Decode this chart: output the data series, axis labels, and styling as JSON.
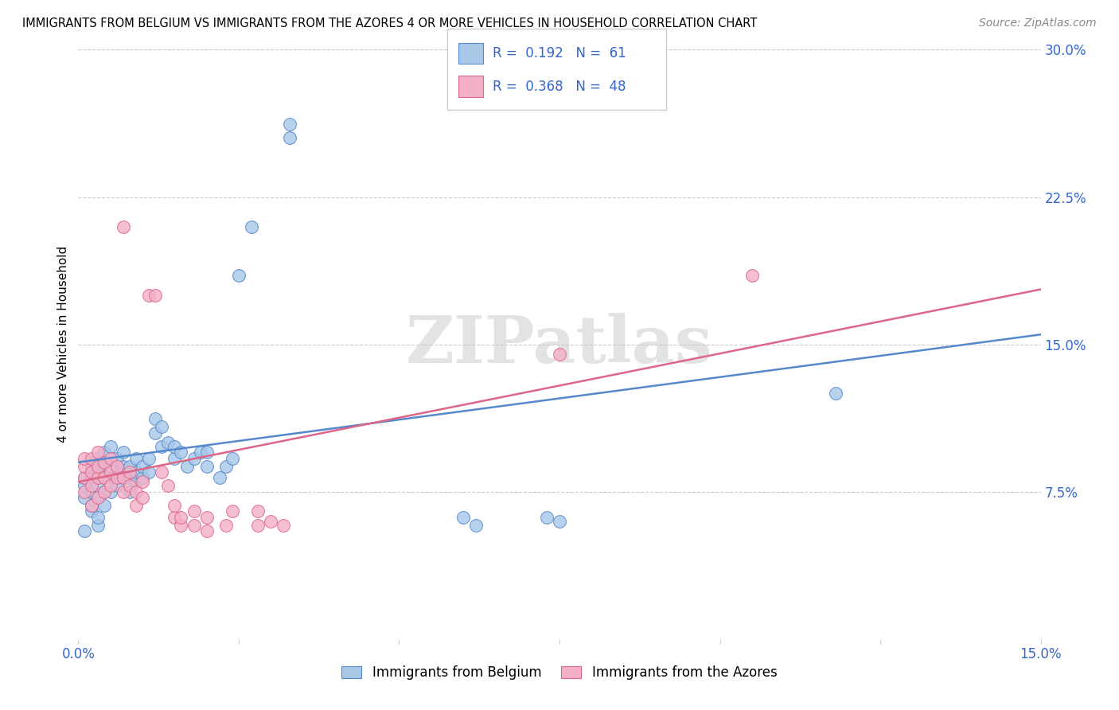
{
  "title": "IMMIGRANTS FROM BELGIUM VS IMMIGRANTS FROM THE AZORES 4 OR MORE VEHICLES IN HOUSEHOLD CORRELATION CHART",
  "source": "Source: ZipAtlas.com",
  "ylabel": "4 or more Vehicles in Household",
  "xlim": [
    0.0,
    0.15
  ],
  "ylim": [
    0.0,
    0.3
  ],
  "ytick_labels": [
    "7.5%",
    "15.0%",
    "22.5%",
    "30.0%"
  ],
  "ytick_vals": [
    0.075,
    0.15,
    0.225,
    0.3
  ],
  "grid_color": "#cccccc",
  "watermark_text": "ZIPatlas",
  "blue_color": "#a8c8e8",
  "pink_color": "#f4b0c8",
  "line_blue": "#5588cc",
  "line_pink": "#dd6688",
  "legend_color": "#3366cc",
  "blue_scatter": [
    [
      0.001,
      0.055
    ],
    [
      0.001,
      0.072
    ],
    [
      0.001,
      0.078
    ],
    [
      0.001,
      0.082
    ],
    [
      0.002,
      0.065
    ],
    [
      0.002,
      0.068
    ],
    [
      0.002,
      0.075
    ],
    [
      0.002,
      0.082
    ],
    [
      0.002,
      0.088
    ],
    [
      0.003,
      0.058
    ],
    [
      0.003,
      0.062
    ],
    [
      0.003,
      0.072
    ],
    [
      0.003,
      0.078
    ],
    [
      0.003,
      0.085
    ],
    [
      0.003,
      0.092
    ],
    [
      0.004,
      0.068
    ],
    [
      0.004,
      0.075
    ],
    [
      0.004,
      0.082
    ],
    [
      0.004,
      0.088
    ],
    [
      0.004,
      0.095
    ],
    [
      0.005,
      0.075
    ],
    [
      0.005,
      0.082
    ],
    [
      0.005,
      0.088
    ],
    [
      0.005,
      0.098
    ],
    [
      0.006,
      0.078
    ],
    [
      0.006,
      0.085
    ],
    [
      0.006,
      0.092
    ],
    [
      0.007,
      0.082
    ],
    [
      0.007,
      0.088
    ],
    [
      0.007,
      0.095
    ],
    [
      0.008,
      0.075
    ],
    [
      0.008,
      0.082
    ],
    [
      0.008,
      0.088
    ],
    [
      0.009,
      0.08
    ],
    [
      0.009,
      0.085
    ],
    [
      0.009,
      0.092
    ],
    [
      0.01,
      0.082
    ],
    [
      0.01,
      0.088
    ],
    [
      0.011,
      0.085
    ],
    [
      0.011,
      0.092
    ],
    [
      0.012,
      0.105
    ],
    [
      0.012,
      0.112
    ],
    [
      0.013,
      0.098
    ],
    [
      0.013,
      0.108
    ],
    [
      0.014,
      0.1
    ],
    [
      0.015,
      0.092
    ],
    [
      0.015,
      0.098
    ],
    [
      0.016,
      0.095
    ],
    [
      0.017,
      0.088
    ],
    [
      0.018,
      0.092
    ],
    [
      0.019,
      0.095
    ],
    [
      0.02,
      0.088
    ],
    [
      0.02,
      0.095
    ],
    [
      0.022,
      0.082
    ],
    [
      0.023,
      0.088
    ],
    [
      0.024,
      0.092
    ],
    [
      0.025,
      0.185
    ],
    [
      0.027,
      0.21
    ],
    [
      0.033,
      0.255
    ],
    [
      0.033,
      0.262
    ],
    [
      0.06,
      0.062
    ],
    [
      0.062,
      0.058
    ],
    [
      0.073,
      0.062
    ],
    [
      0.075,
      0.06
    ],
    [
      0.118,
      0.125
    ]
  ],
  "pink_scatter": [
    [
      0.001,
      0.075
    ],
    [
      0.001,
      0.082
    ],
    [
      0.001,
      0.088
    ],
    [
      0.001,
      0.092
    ],
    [
      0.002,
      0.068
    ],
    [
      0.002,
      0.078
    ],
    [
      0.002,
      0.085
    ],
    [
      0.002,
      0.092
    ],
    [
      0.003,
      0.072
    ],
    [
      0.003,
      0.082
    ],
    [
      0.003,
      0.088
    ],
    [
      0.003,
      0.095
    ],
    [
      0.004,
      0.075
    ],
    [
      0.004,
      0.082
    ],
    [
      0.004,
      0.09
    ],
    [
      0.005,
      0.078
    ],
    [
      0.005,
      0.085
    ],
    [
      0.005,
      0.092
    ],
    [
      0.006,
      0.082
    ],
    [
      0.006,
      0.088
    ],
    [
      0.007,
      0.075
    ],
    [
      0.007,
      0.082
    ],
    [
      0.007,
      0.21
    ],
    [
      0.008,
      0.078
    ],
    [
      0.008,
      0.085
    ],
    [
      0.009,
      0.068
    ],
    [
      0.009,
      0.075
    ],
    [
      0.01,
      0.072
    ],
    [
      0.01,
      0.08
    ],
    [
      0.011,
      0.175
    ],
    [
      0.012,
      0.175
    ],
    [
      0.013,
      0.085
    ],
    [
      0.014,
      0.078
    ],
    [
      0.015,
      0.062
    ],
    [
      0.015,
      0.068
    ],
    [
      0.016,
      0.058
    ],
    [
      0.016,
      0.062
    ],
    [
      0.018,
      0.058
    ],
    [
      0.018,
      0.065
    ],
    [
      0.02,
      0.055
    ],
    [
      0.02,
      0.062
    ],
    [
      0.023,
      0.058
    ],
    [
      0.024,
      0.065
    ],
    [
      0.028,
      0.058
    ],
    [
      0.028,
      0.065
    ],
    [
      0.03,
      0.06
    ],
    [
      0.032,
      0.058
    ],
    [
      0.075,
      0.145
    ],
    [
      0.105,
      0.185
    ]
  ],
  "blue_line_x": [
    0.0,
    0.15
  ],
  "blue_line_y": [
    0.09,
    0.155
  ],
  "pink_line_x": [
    0.0,
    0.15
  ],
  "pink_line_y": [
    0.08,
    0.178
  ]
}
